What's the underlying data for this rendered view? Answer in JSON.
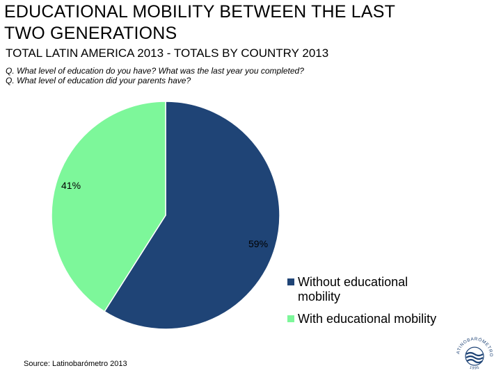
{
  "header": {
    "title_line1": "EDUCATIONAL MOBILITY BETWEEN THE LAST",
    "title_line2": "TWO GENERATIONS",
    "subtitle": "TOTAL LATIN AMERICA 2013 - TOTALS BY COUNTRY 2013",
    "question_1": "Q. What level of education do you have? What was the last year you completed?",
    "question_2": "Q. What level of education did your parents have?"
  },
  "chart_data": {
    "type": "pie",
    "title": "EDUCATIONAL MOBILITY BETWEEN THE LAST TWO GENERATIONS",
    "slices": [
      {
        "name": "Without educational mobility",
        "value": 59,
        "label": "59%",
        "color": "#1f4476"
      },
      {
        "name": "With educational mobility",
        "value": 41,
        "label": "41%",
        "color": "#7df79a"
      }
    ],
    "legend_position": "bottom-right"
  },
  "legend": {
    "item1_line1": "Without educational",
    "item1_line2": "mobility",
    "item2": "With educational mobility"
  },
  "footer": {
    "source": "Source: Latinobarómetro 2013",
    "logo_text": "LATINOBARÓMETRO",
    "logo_year": "1995"
  }
}
